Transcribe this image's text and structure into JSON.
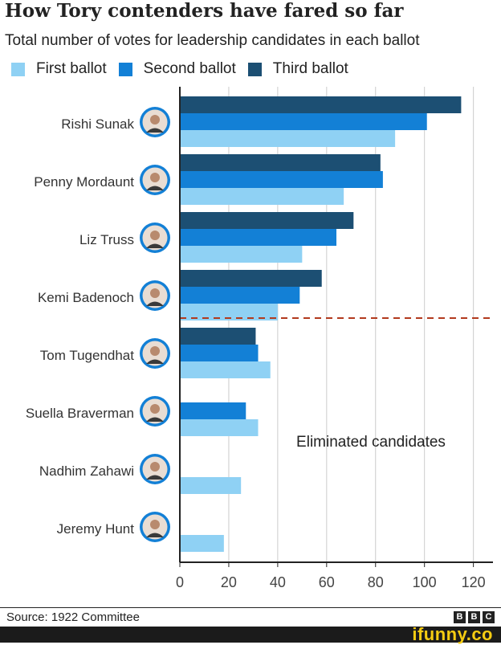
{
  "header": {
    "title": "How Tory contenders have fared so far",
    "subtitle": "Total number of votes for leadership candidates in each ballot"
  },
  "colors": {
    "first_ballot": "#8fd1f4",
    "second_ballot": "#1380d6",
    "third_ballot": "#1c4f73",
    "cutoff_line": "#b23a1e",
    "grid": "#cccccc"
  },
  "footer": {
    "source": "Source: 1922 Committee",
    "logo": [
      "B",
      "B",
      "C"
    ],
    "watermark": "ifunny.co"
  },
  "chart_data": {
    "type": "bar",
    "orientation": "horizontal",
    "title": "How Tory contenders have fared so far",
    "subtitle": "Total number of votes for leadership candidates in each ballot",
    "categories": [
      "Rishi Sunak",
      "Penny Mordaunt",
      "Liz Truss",
      "Kemi Badenoch",
      "Tom Tugendhat",
      "Suella Braverman",
      "Nadhim Zahawi",
      "Jeremy Hunt"
    ],
    "series": [
      {
        "name": "First ballot",
        "values": [
          88,
          67,
          50,
          40,
          37,
          32,
          25,
          18
        ]
      },
      {
        "name": "Second ballot",
        "values": [
          101,
          83,
          64,
          49,
          32,
          27,
          null,
          null
        ]
      },
      {
        "name": "Third ballot",
        "values": [
          115,
          82,
          71,
          58,
          31,
          null,
          null,
          null
        ]
      }
    ],
    "xlim": [
      0,
      128
    ],
    "xticks": [
      0,
      20,
      40,
      60,
      80,
      100,
      120
    ],
    "xlabel": "",
    "ylabel": "",
    "grid": true,
    "legend_position": "top-left",
    "annotation": "Eliminated candidates",
    "eliminated_after_index": 3
  }
}
